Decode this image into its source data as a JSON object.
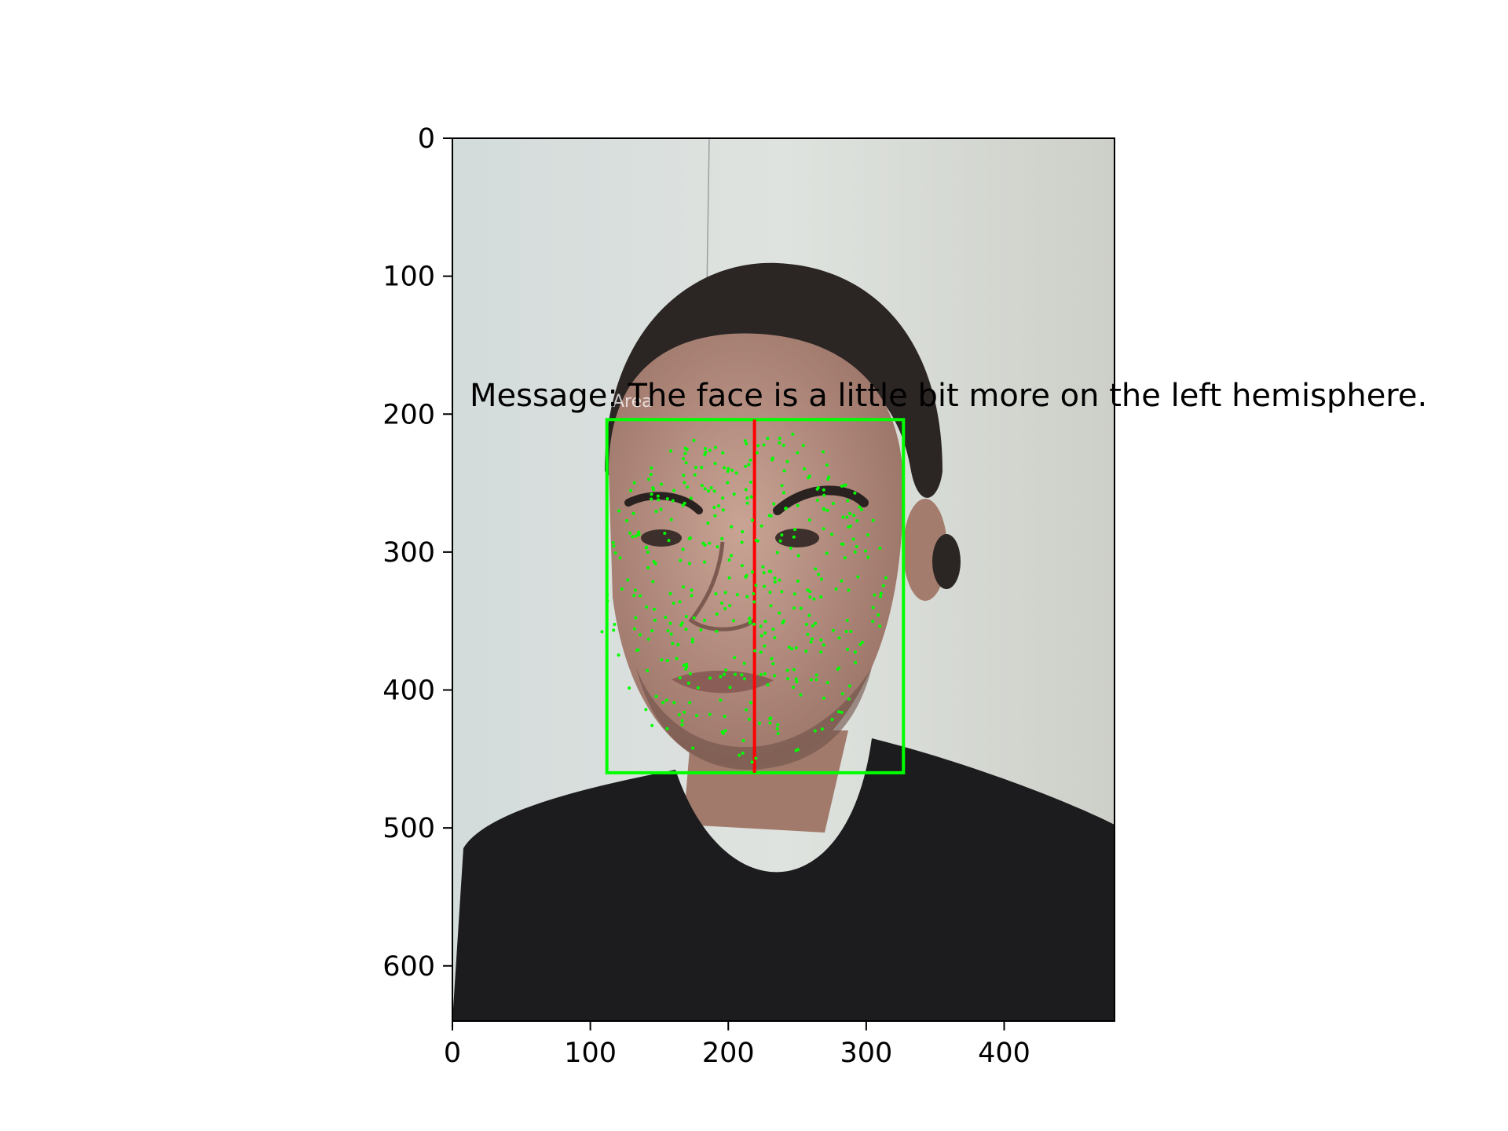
{
  "figure": {
    "message": "Message: The face is a little bit more on the left hemisphere.",
    "x_ticks": [
      {
        "value": 0,
        "label": "0"
      },
      {
        "value": 100,
        "label": "100"
      },
      {
        "value": 200,
        "label": "200"
      },
      {
        "value": 300,
        "label": "300"
      },
      {
        "value": 400,
        "label": "400"
      }
    ],
    "y_ticks": [
      {
        "value": 0,
        "label": "0"
      },
      {
        "value": 100,
        "label": "100"
      },
      {
        "value": 200,
        "label": "200"
      },
      {
        "value": 300,
        "label": "300"
      },
      {
        "value": 400,
        "label": "400"
      },
      {
        "value": 500,
        "label": "500"
      },
      {
        "value": 600,
        "label": "600"
      }
    ],
    "image_extent": {
      "width": 480,
      "height": 640
    },
    "face_box": {
      "x1": 112,
      "y1": 204,
      "x2": 327,
      "y2": 460
    },
    "center_line_x": 219,
    "colors": {
      "box": "#00ff00",
      "center_line": "#ff0000",
      "landmarks": "#00ff00"
    }
  }
}
